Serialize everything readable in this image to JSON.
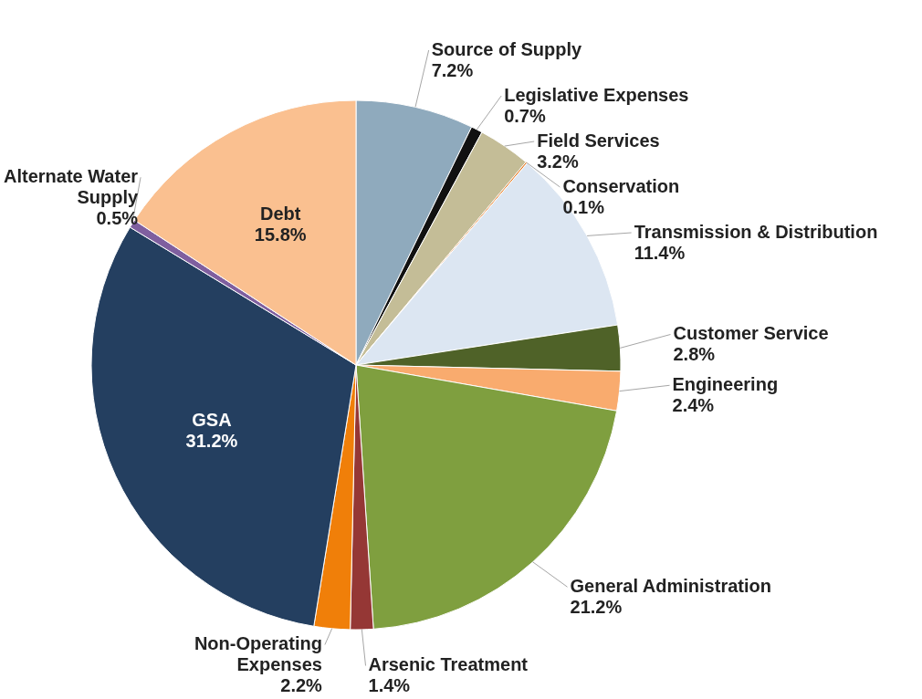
{
  "chart_data": {
    "type": "pie",
    "categories": [
      "Source of Supply",
      "Legislative Expenses",
      "Field Services",
      "Conservation",
      "Transmission & Distribution",
      "Customer Service",
      "Engineering",
      "General Administration",
      "Arsenic Treatment",
      "Non-Operating Expenses",
      "GSA",
      "Alternate Water Supply",
      "Debt"
    ],
    "values": [
      7.2,
      0.7,
      3.2,
      0.1,
      11.4,
      2.8,
      2.4,
      21.2,
      1.4,
      2.2,
      31.2,
      0.5,
      15.8
    ],
    "value_labels": [
      "7.2%",
      "0.7%",
      "3.2%",
      "0.1%",
      "11.4%",
      "2.8%",
      "2.4%",
      "21.2%",
      "1.4%",
      "2.2%",
      "31.2%",
      "0.5%",
      "15.8%"
    ],
    "colors": [
      "#8faabd",
      "#111111",
      "#c4bd97",
      "#e46c0a",
      "#dce6f2",
      "#4f6228",
      "#f9ab6e",
      "#7f9f3f",
      "#953735",
      "#f07f09",
      "#243f60",
      "#7f5f9f",
      "#fac090"
    ],
    "legend": false
  }
}
